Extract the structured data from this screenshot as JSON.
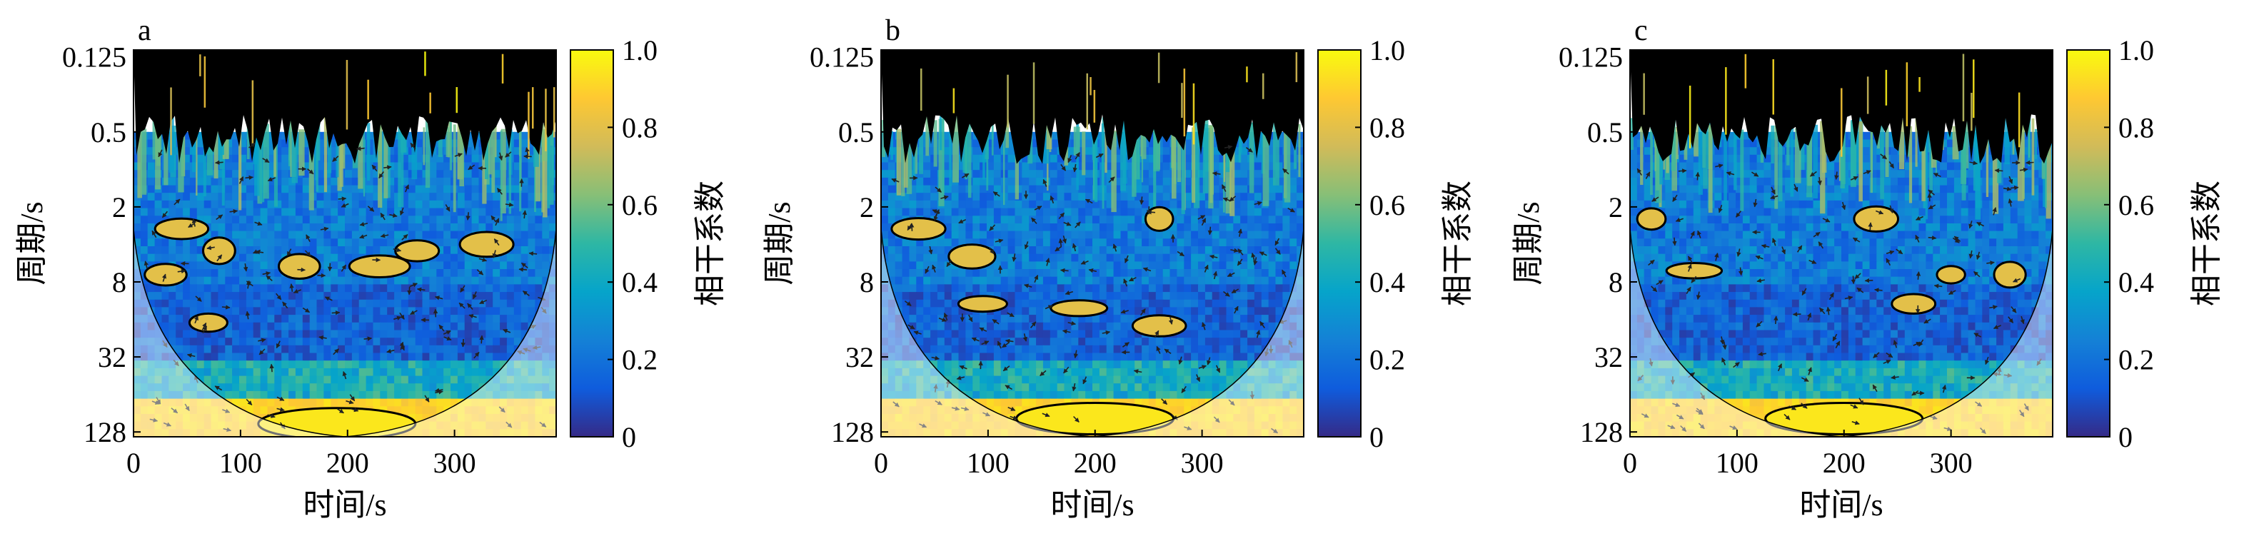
{
  "chart_data": [
    {
      "type": "heatmap",
      "panel_label": "a",
      "xlabel": "时间/s",
      "ylabel": "周期/s",
      "x_ticks": [
        "0",
        "100",
        "200",
        "300"
      ],
      "x_tick_values": [
        0,
        100,
        200,
        300
      ],
      "xlim": [
        0,
        395
      ],
      "y_ticks": [
        "0.125",
        "0.5",
        "2",
        "8",
        "32",
        "128"
      ],
      "y_tick_values": [
        0.125,
        0.5,
        2,
        8,
        32,
        128
      ],
      "ylim": [
        0.11,
        140
      ],
      "y_scale": "log2",
      "y_reversed": true,
      "colorbar": {
        "label": "相干系数",
        "ticks": [
          "0",
          "0.2",
          "0.4",
          "0.6",
          "0.8",
          "1.0"
        ],
        "tick_values": [
          0,
          0.2,
          0.4,
          0.6,
          0.8,
          1.0
        ],
        "range": [
          0,
          1
        ]
      },
      "significant_regions": [
        {
          "time": 30,
          "period": 7.0,
          "coherence": 0.8
        },
        {
          "time": 70,
          "period": 17,
          "coherence": 0.8
        },
        {
          "time": 45,
          "period": 3.0,
          "coherence": 0.8
        },
        {
          "time": 80,
          "period": 4.5,
          "coherence": 0.8
        },
        {
          "time": 155,
          "period": 6.0,
          "coherence": 0.8
        },
        {
          "time": 230,
          "period": 6.0,
          "coherence": 0.8
        },
        {
          "time": 265,
          "period": 4.5,
          "coherence": 0.8
        },
        {
          "time": 330,
          "period": 4.0,
          "coherence": 0.8
        },
        {
          "time": 190,
          "period": 110,
          "coherence": 0.95
        }
      ]
    },
    {
      "type": "heatmap",
      "panel_label": "b",
      "xlabel": "时间/s",
      "ylabel": "周期/s",
      "x_ticks": [
        "0",
        "100",
        "200",
        "300"
      ],
      "x_tick_values": [
        0,
        100,
        200,
        300
      ],
      "xlim": [
        0,
        395
      ],
      "y_ticks": [
        "0.125",
        "0.5",
        "2",
        "8",
        "32",
        "128"
      ],
      "y_tick_values": [
        0.125,
        0.5,
        2,
        8,
        32,
        128
      ],
      "ylim": [
        0.11,
        140
      ],
      "y_scale": "log2",
      "y_reversed": true,
      "colorbar": {
        "label": "相干系数",
        "ticks": [
          "0",
          "0.2",
          "0.4",
          "0.6",
          "0.8",
          "1.0"
        ],
        "tick_values": [
          0,
          0.2,
          0.4,
          0.6,
          0.8,
          1.0
        ],
        "range": [
          0,
          1
        ]
      },
      "significant_regions": [
        {
          "time": 35,
          "period": 3.0,
          "coherence": 0.8
        },
        {
          "time": 85,
          "period": 5.0,
          "coherence": 0.8
        },
        {
          "time": 95,
          "period": 12,
          "coherence": 0.8
        },
        {
          "time": 185,
          "period": 13,
          "coherence": 0.8
        },
        {
          "time": 260,
          "period": 18,
          "coherence": 0.8
        },
        {
          "time": 260,
          "period": 2.5,
          "coherence": 0.8
        },
        {
          "time": 200,
          "period": 100,
          "coherence": 0.95
        }
      ]
    },
    {
      "type": "heatmap",
      "panel_label": "c",
      "xlabel": "时间/s",
      "ylabel": "周期/s",
      "x_ticks": [
        "0",
        "100",
        "200",
        "300"
      ],
      "x_tick_values": [
        0,
        100,
        200,
        300
      ],
      "xlim": [
        0,
        395
      ],
      "y_ticks": [
        "0.125",
        "0.5",
        "2",
        "8",
        "32",
        "128"
      ],
      "y_tick_values": [
        0.125,
        0.5,
        2,
        8,
        32,
        128
      ],
      "ylim": [
        0.11,
        140
      ],
      "y_scale": "log2",
      "y_reversed": true,
      "colorbar": {
        "label": "相干系数",
        "ticks": [
          "0",
          "0.2",
          "0.4",
          "0.6",
          "0.8",
          "1.0"
        ],
        "tick_values": [
          0,
          0.2,
          0.4,
          0.6,
          0.8,
          1.0
        ],
        "range": [
          0,
          1
        ]
      },
      "significant_regions": [
        {
          "time": 20,
          "period": 2.5,
          "coherence": 0.8
        },
        {
          "time": 60,
          "period": 6.5,
          "coherence": 0.8
        },
        {
          "time": 230,
          "period": 2.5,
          "coherence": 0.8
        },
        {
          "time": 265,
          "period": 12,
          "coherence": 0.8
        },
        {
          "time": 300,
          "period": 7.0,
          "coherence": 0.8
        },
        {
          "time": 355,
          "period": 7.0,
          "coherence": 0.8
        },
        {
          "time": 200,
          "period": 100,
          "coherence": 0.95
        }
      ]
    }
  ],
  "colors": {
    "parula": [
      "#352a87",
      "#0f5cdd",
      "#1481d6",
      "#06a4ca",
      "#2eb7a4",
      "#87bf77",
      "#d1bb59",
      "#fec832",
      "#f9fb0e"
    ],
    "masked_top": "#000000",
    "coi_shade": "rgba(255,255,255,0.45)",
    "arrow": "#222222",
    "contour": "#000000"
  }
}
